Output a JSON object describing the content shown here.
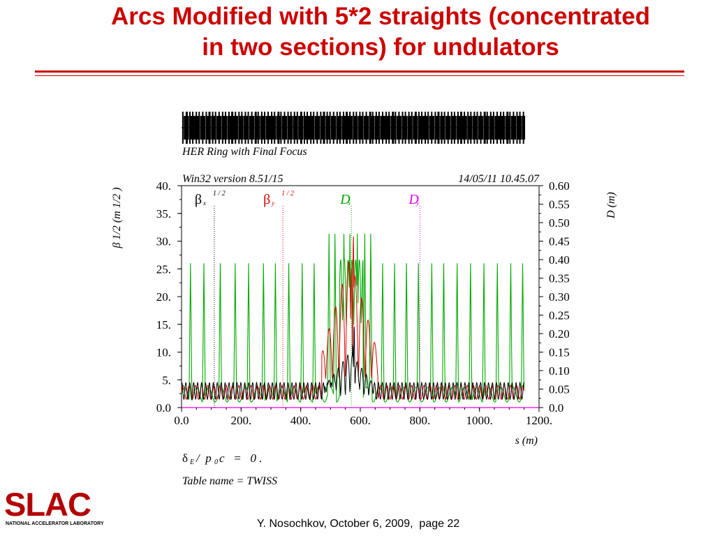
{
  "slide": {
    "title_line1": "Arcs Modified with 5*2 straights (concentrated",
    "title_line2": "in two sections) for undulators",
    "footer": "Y. Nosochkov, October 6, 2009,  page 22",
    "logo_text": "SLAC",
    "logo_subtext": "NATIONAL ACCELERATOR LABORATORY",
    "accent_color": "#cc0000"
  },
  "chart_data": {
    "type": "line",
    "header": "HER Ring with Final Focus",
    "version": "Win32 version 8.51/15",
    "datetime": "14/05/11  10.45.07",
    "xlabel": "s (m)",
    "ylabel_left": "β 1/2 (m 1/2 )",
    "ylabel_right": "D (m)",
    "xlim": [
      0,
      1200
    ],
    "ylim_left": [
      0,
      40
    ],
    "ylim_right": [
      0,
      0.6
    ],
    "x_ticks": [
      "0.0",
      "200.",
      "400.",
      "600.",
      "800.",
      "1000.",
      "1200."
    ],
    "y_left_ticks": [
      "0.0",
      "5.",
      "10.",
      "15.",
      "20.",
      "25.",
      "30.",
      "35.",
      "40."
    ],
    "y_right_ticks": [
      "0.0",
      "0.05",
      "0.10",
      "0.15",
      "0.20",
      "0.25",
      "0.30",
      "0.35",
      "0.40",
      "0.45",
      "0.50",
      "0.55",
      "0.60"
    ],
    "legend": [
      {
        "symbol": "β",
        "sub": "x",
        "sup": "1 / 2",
        "color": "#000000",
        "x": 110
      },
      {
        "symbol": "β",
        "sub": "y",
        "sup": "1 / 2",
        "color": "#dd0000",
        "x": 340
      },
      {
        "symbol": "D",
        "sub": "x",
        "sup": "",
        "color": "#00aa00",
        "x": 570
      },
      {
        "symbol": "D",
        "sub": "y",
        "sup": "",
        "color": "#ee00ee",
        "x": 800
      }
    ],
    "series": [
      {
        "name": "βx 1/2",
        "color": "#000000",
        "axis": "left",
        "baseline": [
          1.5,
          4.5
        ],
        "peaks_ir": [
          17,
          10
        ],
        "peak_x": [
          578
        ]
      },
      {
        "name": "βy 1/2",
        "color": "#dd0000",
        "axis": "left",
        "baseline": [
          1.5,
          4.0
        ],
        "peaks_ir": [
          33,
          27
        ],
        "peak_x": [
          575
        ]
      },
      {
        "name": "Dx",
        "color": "#00aa00",
        "axis": "right",
        "arc_peaks": 0.39,
        "ir_peaks": 0.47,
        "arc_peak_x": [
          30,
          75,
          130,
          180,
          225,
          275,
          315,
          360,
          405,
          445,
          635,
          675,
          715,
          755,
          795,
          840,
          880,
          925,
          970,
          1015,
          1060,
          1105,
          1145
        ]
      },
      {
        "name": "Dy",
        "color": "#ee00ee",
        "axis": "right",
        "values": "0.0"
      }
    ],
    "parameters": {
      "delta": "δ",
      "delta_sub": "E",
      "mid": "/  p",
      "p_sub": "0",
      "tail": "c   =   0 .",
      "table": "Table name = TWISS"
    }
  }
}
